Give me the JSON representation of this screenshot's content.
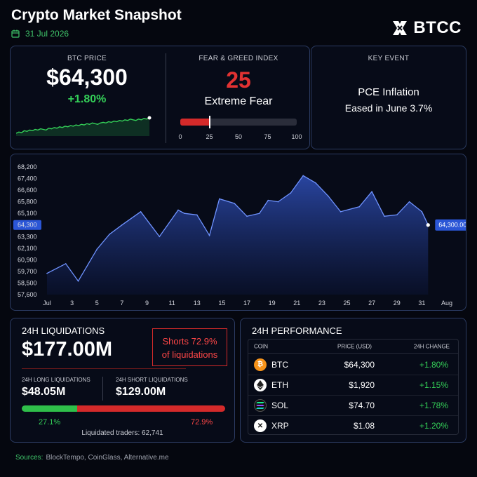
{
  "header": {
    "title": "Crypto Market Snapshot",
    "date": "31 Jul 2026",
    "brand": "BTCC"
  },
  "btc_price": {
    "label": "BTC PRICE",
    "value": "$64,300",
    "change": "+1.80%",
    "sparkline": [
      30,
      32,
      31,
      34,
      33,
      35,
      34,
      36,
      35,
      37,
      36,
      35,
      38,
      37,
      39,
      38,
      40,
      39,
      41,
      40,
      42,
      41,
      43,
      42,
      44,
      43,
      45,
      44,
      46,
      45,
      44,
      46,
      47,
      46,
      48,
      47,
      49,
      48,
      50,
      49,
      51,
      50,
      52,
      51,
      50,
      52,
      51,
      53,
      52,
      54
    ]
  },
  "fear_greed": {
    "label": "FEAR & GREED INDEX",
    "value": "25",
    "status": "Extreme Fear",
    "level": 25,
    "ticks": [
      "0",
      "25",
      "50",
      "75",
      "100"
    ]
  },
  "key_event": {
    "label": "KEY EVENT",
    "line1": "PCE Inflation",
    "line2": "Eased in June 3.7%"
  },
  "chart_data": {
    "type": "area",
    "title": "",
    "xlabel": "",
    "ylabel": "",
    "y_ticks": [
      68200,
      67400,
      66600,
      65800,
      65100,
      64300,
      63300,
      62100,
      60900,
      59700,
      58500,
      57600
    ],
    "y_tick_labels": [
      "68,200",
      "67,400",
      "66,600",
      "65,800",
      "65,100",
      "64,300",
      "63,300",
      "62,100",
      "60,900",
      "59,700",
      "58,500",
      "57,600"
    ],
    "x_tick_labels": [
      "Jul",
      "3",
      "5",
      "7",
      "9",
      "11",
      "13",
      "15",
      "17",
      "19",
      "21",
      "23",
      "25",
      "27",
      "29",
      "31",
      "Aug"
    ],
    "x_tick_values": [
      1,
      3,
      5,
      7,
      9,
      11,
      13,
      15,
      17,
      19,
      21,
      23,
      25,
      27,
      29,
      31,
      33
    ],
    "xlim": [
      1,
      33
    ],
    "points": [
      {
        "x": 1,
        "y": 59500
      },
      {
        "x": 2.5,
        "y": 60500
      },
      {
        "x": 3.5,
        "y": 58700
      },
      {
        "x": 5,
        "y": 62000
      },
      {
        "x": 6,
        "y": 63500
      },
      {
        "x": 7,
        "y": 64300
      },
      {
        "x": 8.5,
        "y": 65200
      },
      {
        "x": 10,
        "y": 63300
      },
      {
        "x": 11.5,
        "y": 65300
      },
      {
        "x": 12,
        "y": 65100
      },
      {
        "x": 13,
        "y": 65000
      },
      {
        "x": 14,
        "y": 63400
      },
      {
        "x": 14.8,
        "y": 66000
      },
      {
        "x": 16,
        "y": 65700
      },
      {
        "x": 17,
        "y": 64900
      },
      {
        "x": 18,
        "y": 65100
      },
      {
        "x": 18.7,
        "y": 65900
      },
      {
        "x": 19.5,
        "y": 65800
      },
      {
        "x": 20.5,
        "y": 66400
      },
      {
        "x": 21.5,
        "y": 67600
      },
      {
        "x": 22.5,
        "y": 67100
      },
      {
        "x": 23.5,
        "y": 66200
      },
      {
        "x": 24.5,
        "y": 65200
      },
      {
        "x": 26,
        "y": 65500
      },
      {
        "x": 27,
        "y": 66500
      },
      {
        "x": 28,
        "y": 64900
      },
      {
        "x": 29,
        "y": 65000
      },
      {
        "x": 30,
        "y": 65800
      },
      {
        "x": 31,
        "y": 65200
      },
      {
        "x": 31.5,
        "y": 64300
      }
    ],
    "current_label": "64,300",
    "last_label": "64,300.00",
    "grid": false,
    "color": "#4d78e6"
  },
  "liquidations": {
    "title": "24H LIQUIDATIONS",
    "total": "$177.00M",
    "shorts_line1": "Shorts 72.9%",
    "shorts_line2": "of liquidations",
    "long_label": "24H LONG LIQUIDATIONS",
    "long_value": "$48.05M",
    "short_label": "24H SHORT LIQUIDATIONS",
    "short_value": "$129.00M",
    "long_pct": "27.1%",
    "short_pct": "72.9%",
    "long_share": 27.1,
    "traders": "Liquidated traders: 62,741"
  },
  "performance": {
    "title": "24H PERFORMANCE",
    "headers": {
      "coin": "COIN",
      "price": "PRICE (USD)",
      "change": "24H CHANGE"
    },
    "rows": [
      {
        "icon": "bitcoin-icon",
        "symbol": "BTC",
        "price": "$64,300",
        "change": "+1.80%",
        "color": "#f7931a"
      },
      {
        "icon": "ethereum-icon",
        "symbol": "ETH",
        "price": "$1,920",
        "change": "+1.15%",
        "color": "#ffffff"
      },
      {
        "icon": "solana-icon",
        "symbol": "SOL",
        "price": "$74.70",
        "change": "+1.78%",
        "color": "#111111"
      },
      {
        "icon": "xrp-icon",
        "symbol": "XRP",
        "price": "$1.08",
        "change": "+1.20%",
        "color": "#ffffff"
      }
    ]
  },
  "sources": {
    "label": "Sources:",
    "text": "BlockTempo, CoinGlass, Alternative.me"
  }
}
